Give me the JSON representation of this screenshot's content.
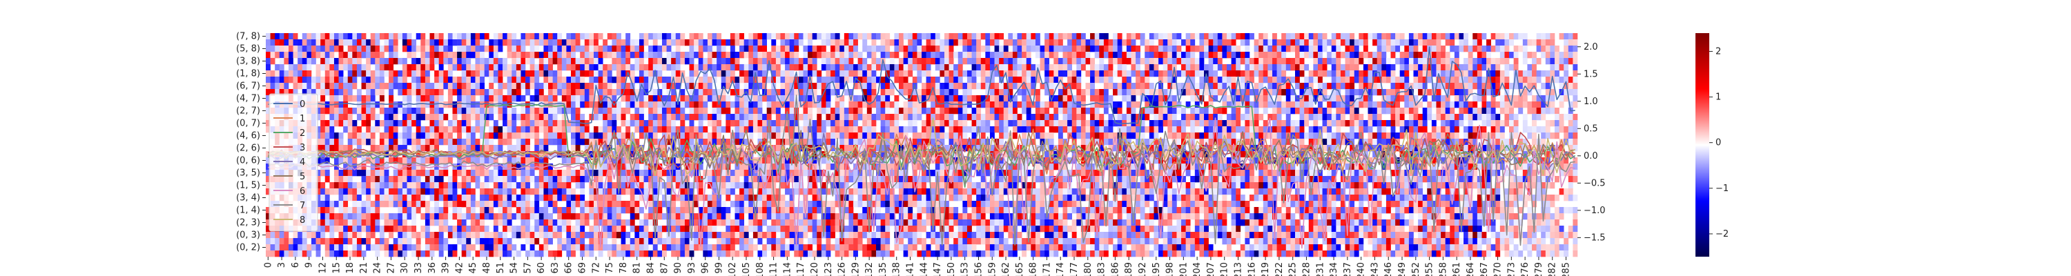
{
  "chart_data": {
    "type": "heatmap",
    "title": "",
    "xlabel": "",
    "ylabel": "",
    "x_tick_step": 3,
    "x_count": 288,
    "y_tick_labels": [
      "(7, 8)",
      "(5, 8)",
      "(3, 8)",
      "(1, 8)",
      "(6, 7)",
      "(4, 7)",
      "(2, 7)",
      "(0, 7)",
      "(4, 6)",
      "(2, 6)",
      "(0, 6)",
      "(3, 5)",
      "(1, 5)",
      "(3, 4)",
      "(1, 4)",
      "(2, 3)",
      "(0, 3)",
      "(0, 2)"
    ],
    "heatmap_rows": 36,
    "colorscale": "seismic",
    "colorbar": {
      "min": -2.5,
      "max": 2.4,
      "ticks": [
        -2,
        -1,
        0,
        1,
        2
      ]
    },
    "overlay": {
      "type": "line",
      "ylim": [
        -1.85,
        2.25
      ],
      "right_axis_ticks": [
        -1.5,
        -1.0,
        -0.5,
        0.0,
        0.5,
        1.0,
        1.5,
        2.0
      ],
      "legend_position": "left",
      "series": [
        {
          "name": "0",
          "color": "#4c72b0",
          "baseline": 0.85,
          "segments": [
            [
              0,
              52,
              0.95
            ],
            [
              52,
              66,
              0.95
            ],
            [
              66,
              72,
              0.6
            ],
            [
              147,
              157,
              0.95
            ],
            [
              177,
              186,
              0.95
            ],
            [
              186,
              192,
              0.6
            ]
          ],
          "amp": 0.35
        },
        {
          "name": "1",
          "color": "#dd8452",
          "baseline": 0.05,
          "amp": 0.25
        },
        {
          "name": "2",
          "color": "#55a868",
          "baseline": 0.0,
          "segments": [
            [
              48,
              66,
              0.92
            ],
            [
              192,
              217,
              0.9
            ]
          ],
          "amp": 0.2
        },
        {
          "name": "3",
          "color": "#c44e52",
          "baseline": 0.05,
          "amp": 0.25
        },
        {
          "name": "4",
          "color": "#8172b3",
          "baseline": 0.0,
          "amp": 0.22
        },
        {
          "name": "5",
          "color": "#937860",
          "baseline": 0.05,
          "amp": 0.25
        },
        {
          "name": "6",
          "color": "#da8bc3",
          "baseline": -0.2,
          "amp": 0.6
        },
        {
          "name": "7",
          "color": "#8c8c8c",
          "baseline": -0.15,
          "amp": 0.55
        },
        {
          "name": "8",
          "color": "#ccb974",
          "baseline": 0.05,
          "amp": 0.3
        }
      ]
    }
  }
}
